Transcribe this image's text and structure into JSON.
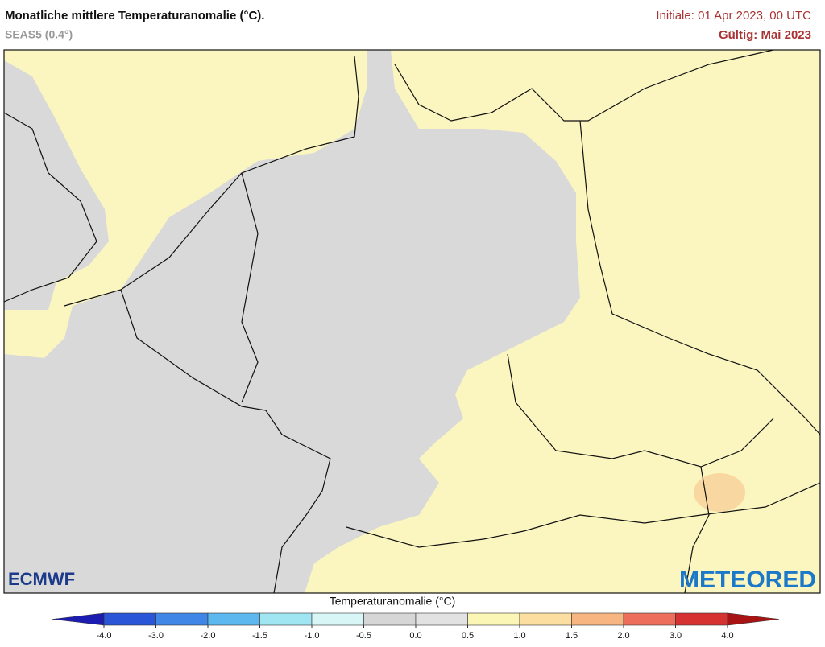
{
  "header": {
    "title": "Monatliche mittlere Temperaturanomalie (°C).",
    "subtitle": "SEAS5 (0.4°)",
    "initial": "Initiale: 01 Apr 2023, 00 UTC",
    "valid": "Gültig: Mai 2023"
  },
  "logos": {
    "left": "ECMWF",
    "right": "METEORED"
  },
  "colorbar": {
    "title": "Temperaturanomalie (°C)",
    "ticks": [
      {
        "value": -4,
        "label": "-4.0"
      },
      {
        "value": -3,
        "label": "-3.0"
      },
      {
        "value": -2,
        "label": "-2.0"
      },
      {
        "value": -1.5,
        "label": "-1.5"
      },
      {
        "value": -1,
        "label": "-1.0"
      },
      {
        "value": -0.5,
        "label": "-0.5"
      },
      {
        "value": 0,
        "label": "0.0"
      },
      {
        "value": 0.5,
        "label": "0.5"
      },
      {
        "value": 1,
        "label": "1.0"
      },
      {
        "value": 1.5,
        "label": "1.5"
      },
      {
        "value": 2,
        "label": "2.0"
      },
      {
        "value": 3,
        "label": "3.0"
      },
      {
        "value": 4,
        "label": "4.0"
      }
    ],
    "colors": [
      "#1c1cb0",
      "#2a55d6",
      "#3f86e6",
      "#5cb8ee",
      "#a0e6f2",
      "#d8f6f6",
      "#d6d6d6",
      "#e2e2e2",
      "#fbf5b6",
      "#fcdfa0",
      "#f7b681",
      "#ee6e5c",
      "#d63232",
      "#a81414"
    ]
  }
}
